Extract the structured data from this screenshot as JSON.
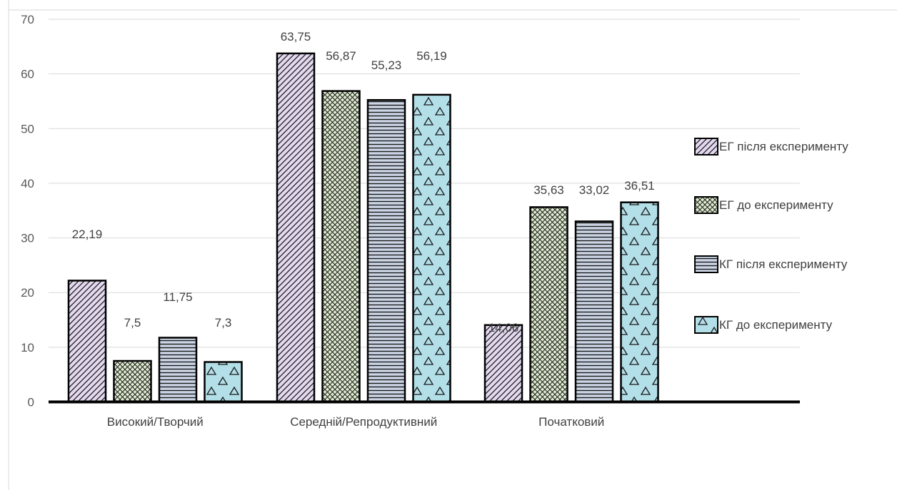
{
  "chart_data": {
    "type": "bar",
    "categories": [
      "Високий/Творчий",
      "Середній/Репродуктивний",
      "Початковий"
    ],
    "series": [
      {
        "name": "ЕГ після експерименту",
        "values": [
          22.19,
          63.75,
          14.06
        ],
        "labels": [
          "22,19",
          "63,75",
          "14,06"
        ],
        "fill": "#e4d9f0",
        "pattern": "diagonal"
      },
      {
        "name": "ЕГ до експерименту",
        "values": [
          7.5,
          56.87,
          35.63
        ],
        "labels": [
          "7,5",
          "56,87",
          "35,63"
        ],
        "fill": "#dfeccf",
        "pattern": "crosshatch"
      },
      {
        "name": "КГ після експерименту",
        "values": [
          11.75,
          55.23,
          33.02
        ],
        "labels": [
          "11,75",
          "55,23",
          "33,02"
        ],
        "fill": "#ccd5e6",
        "pattern": "horizontal"
      },
      {
        "name": "КГ до експерименту",
        "values": [
          7.3,
          56.19,
          36.51
        ],
        "labels": [
          "7,3",
          "56,19",
          "36,51"
        ],
        "fill": "#b3dfe9",
        "pattern": "triangles"
      }
    ],
    "yticks": [
      "0",
      "10",
      "20",
      "30",
      "40",
      "50",
      "60",
      "70"
    ],
    "ylim": [
      0,
      70
    ],
    "grid": true,
    "legend_position": "right",
    "title": "",
    "xlabel": "",
    "ylabel": ""
  }
}
